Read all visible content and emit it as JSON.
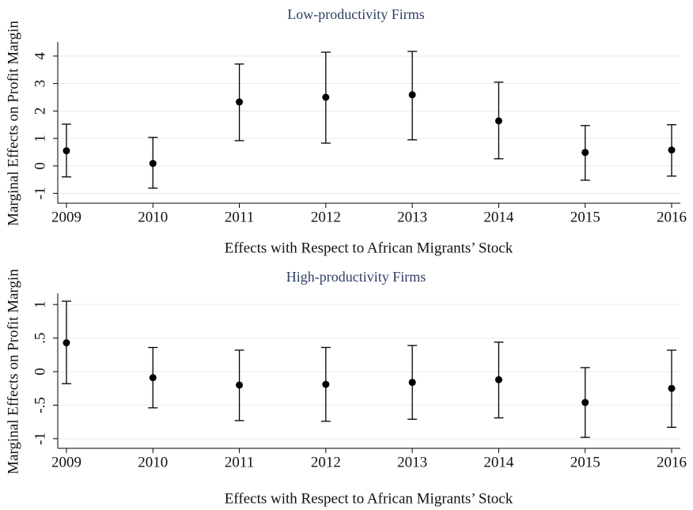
{
  "chart_data": [
    {
      "type": "errorbar",
      "title": "Low-productivity Firms",
      "xlabel": "Effects with Respect to African Migrants’ Stock",
      "ylabel": "Marginal Effects on Profit Margin",
      "x": [
        2009,
        2010,
        2011,
        2012,
        2013,
        2014,
        2015,
        2016
      ],
      "values": [
        0.55,
        0.09,
        2.33,
        2.5,
        2.59,
        1.64,
        0.49,
        0.58
      ],
      "lower": [
        -0.4,
        -0.81,
        0.92,
        0.83,
        0.95,
        0.26,
        -0.52,
        -0.37
      ],
      "upper": [
        1.52,
        1.04,
        3.71,
        4.14,
        4.17,
        3.05,
        1.47,
        1.5
      ],
      "color": "#000000",
      "xlim": [
        2009,
        2016
      ],
      "xticks": [
        2009,
        2010,
        2011,
        2012,
        2013,
        2014,
        2015,
        2016
      ],
      "ylim": [
        -1.3,
        4.4
      ],
      "yticks": [
        -1,
        0,
        1,
        2,
        3,
        4
      ],
      "grid": true
    },
    {
      "type": "errorbar",
      "title": "High-productivity Firms",
      "xlabel": "Effects with Respect to African Migrants’ Stock",
      "ylabel": "Marginal Effects on Profit Margin",
      "x": [
        2009,
        2010,
        2011,
        2012,
        2013,
        2014,
        2015,
        2016
      ],
      "values": [
        0.43,
        -0.09,
        -0.2,
        -0.19,
        -0.16,
        -0.12,
        -0.46,
        -0.25
      ],
      "lower": [
        -0.18,
        -0.54,
        -0.73,
        -0.74,
        -0.71,
        -0.69,
        -0.98,
        -0.83
      ],
      "upper": [
        1.05,
        0.36,
        0.32,
        0.36,
        0.39,
        0.44,
        0.06,
        0.32
      ],
      "color": "#000000",
      "xlim": [
        2009,
        2016
      ],
      "xticks": [
        2009,
        2010,
        2011,
        2012,
        2013,
        2014,
        2015,
        2016
      ],
      "ylim": [
        -1.12,
        1.12
      ],
      "yticks": [
        -1,
        {
          "value": -0.5,
          "label": "-.5"
        },
        0,
        {
          "value": 0.5,
          "label": ".5"
        },
        1
      ],
      "grid": true
    }
  ]
}
